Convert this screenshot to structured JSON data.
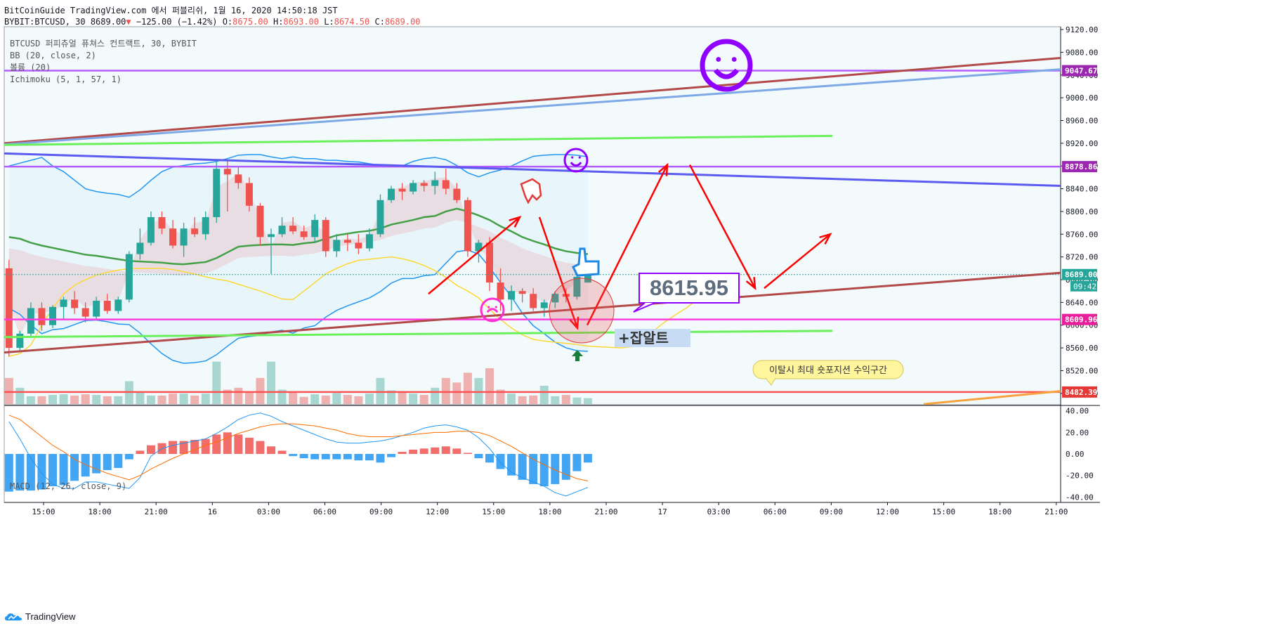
{
  "header": {
    "line1": "BitCoinGuide TradingView.com 에서 퍼블리쉬, 1월 16, 2020 14:50:18 JST",
    "symbol": "BYBIT:BTCUSD, 30",
    "last": "8689.00",
    "down_arrow": "▼",
    "change": "−125.00 (−1.42%)",
    "o_label": "O:",
    "o": "8675.00",
    "h_label": "H:",
    "h": "8693.00",
    "l_label": "L:",
    "l": "8674.50",
    "c_label": "C:",
    "c": "8689.00"
  },
  "legend": {
    "title": "BTCUSD 퍼피츄얼 퓨쳐스 컨트랙트, 30, BYBIT",
    "bb": "BB (20, close, 2)",
    "volume": "볼륨 (20)",
    "ichimoku": "Ichimoku (5, 1, 57, 1)",
    "macd": "MACD (12, 26, close, 9)"
  },
  "brand": "TradingView",
  "colors": {
    "up": "#26a69a",
    "down": "#ef5350",
    "bb_basis": "#43a047",
    "bb_band": "#2196f3",
    "ichimoku": "#fdd835",
    "macd_line": "#2196f3",
    "signal_line": "#ff6d00",
    "annot": "#ff0000",
    "purple": "#8f00ff"
  },
  "chart_data": [
    {
      "type": "candlestick",
      "title": "BTCUSD 퍼피츄얼 퓨쳐스 컨트랙트, 30, BYBIT",
      "ylim": [
        8460,
        9125
      ],
      "y_ticks": [
        8480,
        8520,
        8560,
        8600,
        8640,
        8680,
        8720,
        8760,
        8800,
        8840,
        8880,
        8920,
        8960,
        9000,
        9040,
        9080,
        9120
      ],
      "x_ticks": [
        "15:00",
        "18:00",
        "21:00",
        "16",
        "03:00",
        "06:00",
        "09:00",
        "12:00",
        "15:00",
        "18:00",
        "21:00",
        "17",
        "03:00",
        "06:00",
        "09:00",
        "12:00",
        "15:00",
        "18:00",
        "21:00"
      ],
      "ohlc": [
        [
          8700,
          8715,
          8545,
          8560
        ],
        [
          8560,
          8590,
          8555,
          8585
        ],
        [
          8585,
          8640,
          8580,
          8630
        ],
        [
          8630,
          8640,
          8590,
          8600
        ],
        [
          8600,
          8635,
          8595,
          8632
        ],
        [
          8632,
          8650,
          8610,
          8645
        ],
        [
          8645,
          8660,
          8620,
          8630
        ],
        [
          8630,
          8640,
          8605,
          8615
        ],
        [
          8615,
          8650,
          8610,
          8643
        ],
        [
          8643,
          8655,
          8620,
          8625
        ],
        [
          8625,
          8650,
          8620,
          8645
        ],
        [
          8645,
          8730,
          8640,
          8725
        ],
        [
          8725,
          8770,
          8715,
          8745
        ],
        [
          8745,
          8800,
          8740,
          8790
        ],
        [
          8790,
          8800,
          8760,
          8770
        ],
        [
          8770,
          8785,
          8735,
          8740
        ],
        [
          8740,
          8780,
          8720,
          8770
        ],
        [
          8770,
          8790,
          8755,
          8760
        ],
        [
          8760,
          8800,
          8750,
          8790
        ],
        [
          8790,
          8890,
          8780,
          8875
        ],
        [
          8875,
          8890,
          8800,
          8865
        ],
        [
          8865,
          8880,
          8840,
          8850
        ],
        [
          8850,
          8860,
          8800,
          8810
        ],
        [
          8810,
          8815,
          8740,
          8755
        ],
        [
          8755,
          8770,
          8690,
          8760
        ],
        [
          8760,
          8790,
          8755,
          8775
        ],
        [
          8775,
          8790,
          8760,
          8765
        ],
        [
          8765,
          8775,
          8750,
          8755
        ],
        [
          8755,
          8795,
          8745,
          8785
        ],
        [
          8785,
          8790,
          8720,
          8730
        ],
        [
          8730,
          8760,
          8720,
          8750
        ],
        [
          8750,
          8760,
          8730,
          8745
        ],
        [
          8745,
          8760,
          8725,
          8735
        ],
        [
          8735,
          8770,
          8730,
          8760
        ],
        [
          8760,
          8830,
          8755,
          8820
        ],
        [
          8820,
          8845,
          8815,
          8840
        ],
        [
          8840,
          8850,
          8820,
          8835
        ],
        [
          8835,
          8855,
          8830,
          8850
        ],
        [
          8850,
          8855,
          8835,
          8845
        ],
        [
          8845,
          8870,
          8830,
          8855
        ],
        [
          8855,
          8875,
          8830,
          8840
        ],
        [
          8840,
          8850,
          8815,
          8820
        ],
        [
          8820,
          8825,
          8720,
          8730
        ],
        [
          8730,
          8750,
          8710,
          8745
        ],
        [
          8745,
          8755,
          8660,
          8675
        ],
        [
          8675,
          8700,
          8625,
          8645
        ],
        [
          8645,
          8670,
          8625,
          8660
        ],
        [
          8660,
          8665,
          8640,
          8655
        ],
        [
          8655,
          8665,
          8625,
          8630
        ],
        [
          8630,
          8645,
          8615,
          8640
        ],
        [
          8640,
          8660,
          8630,
          8655
        ],
        [
          8655,
          8665,
          8640,
          8650
        ],
        [
          8650,
          8690,
          8645,
          8685
        ],
        [
          8675,
          8693,
          8674.5,
          8689
        ]
      ],
      "volume": [
        40,
        25,
        12,
        12,
        14,
        15,
        13,
        15,
        14,
        12,
        12,
        35,
        18,
        13,
        13,
        16,
        16,
        13,
        16,
        65,
        22,
        25,
        18,
        40,
        65,
        22,
        18,
        11,
        15,
        13,
        17,
        14,
        12,
        16,
        40,
        21,
        18,
        16,
        14,
        25,
        40,
        33,
        48,
        40,
        55,
        22,
        16,
        12,
        13,
        28,
        12,
        14,
        10,
        9
      ],
      "bb_basis": [
        8755,
        8752,
        8745,
        8740,
        8736,
        8732,
        8728,
        8724,
        8722,
        8719,
        8716,
        8713,
        8712,
        8711,
        8710,
        8708,
        8707,
        8709,
        8711,
        8718,
        8728,
        8738,
        8740,
        8741,
        8742,
        8742,
        8741,
        8744,
        8746,
        8752,
        8758,
        8761,
        8764,
        8766,
        8770,
        8777,
        8781,
        8785,
        8790,
        8792,
        8800,
        8805,
        8800,
        8793,
        8785,
        8774,
        8765,
        8755,
        8748,
        8742,
        8735,
        8730,
        8727,
        8725
      ],
      "bb_upper": [
        8880,
        8885,
        8890,
        8895,
        8880,
        8870,
        8855,
        8840,
        8835,
        8832,
        8830,
        8825,
        8838,
        8855,
        8870,
        8878,
        8881,
        8884,
        8885,
        8888,
        8893,
        8899,
        8900,
        8900,
        8896,
        8893,
        8896,
        8893,
        8893,
        8890,
        8890,
        8888,
        8887,
        8884,
        8881,
        8880,
        8880,
        8888,
        8893,
        8895,
        8891,
        8881,
        8868,
        8861,
        8868,
        8873,
        8880,
        8889,
        8897,
        8899,
        8900,
        8900,
        8899,
        8896
      ],
      "ichimoku_lag": [
        8660,
        8650,
        8640,
        8600,
        8580,
        8560,
        8545,
        8540,
        8545,
        8550,
        8565,
        8600,
        8630,
        8655,
        8670,
        8680,
        8688,
        8693,
        8697,
        8699,
        8700,
        8700,
        8700,
        8698,
        8694,
        8690,
        8685,
        8681,
        8678,
        8672,
        8666,
        8660,
        8653,
        8646,
        8645,
        8660,
        8675,
        8690,
        8700,
        8708,
        8714,
        8716,
        8718,
        8720,
        8717,
        8712,
        8705,
        8696,
        8684,
        8670,
        8660,
        8648,
        8628,
        8610,
        8595,
        8583,
        8575,
        8572,
        8570,
        8568,
        8566,
        8563,
        8562,
        8561,
        8560,
        8562,
        8572,
        8590,
        8605,
        8618,
        8630,
        8645,
        8660
      ],
      "support_levels": [
        9047.67,
        8878.86,
        8609.96,
        8482.39
      ],
      "price_label": "8689.00",
      "countdown": "09:42",
      "level_labels": [
        "9047.67",
        "8878.86",
        "8609.96",
        "8482.39"
      ],
      "annotations": [
        "8615.95",
        "+잡알트",
        "이탈시 최대 숏포지션 수익구간"
      ]
    },
    {
      "type": "macd",
      "title": "MACD (12, 26, close, 9)",
      "ylim": [
        -45,
        45
      ],
      "y_ticks": [
        40,
        20,
        0,
        -20,
        -40
      ],
      "histogram": [
        -35,
        -34,
        -34,
        -33,
        -30,
        -29,
        -25,
        -21,
        -18,
        -15,
        -13,
        -5,
        3,
        8,
        10,
        12,
        12,
        13,
        14,
        18,
        20,
        18,
        15,
        12,
        7,
        3,
        -2,
        -4,
        -5,
        -5,
        -5,
        -5,
        -6,
        -6,
        -8,
        -3,
        2,
        4,
        5,
        6,
        7,
        5,
        1,
        -4,
        -8,
        -14,
        -20,
        -24,
        -28,
        -30,
        -28,
        -24,
        -16,
        -8
      ],
      "macd_line": [
        30,
        14,
        -4,
        -18,
        -28,
        -32,
        -32,
        -26,
        -26,
        -28,
        -30,
        -32,
        -22,
        -2,
        5,
        8,
        10,
        12,
        14,
        19,
        25,
        32,
        36,
        38,
        35,
        30,
        26,
        22,
        18,
        14,
        11,
        10,
        10,
        11,
        12,
        14,
        17,
        20,
        24,
        26,
        27,
        25,
        22,
        15,
        5,
        -8,
        -17,
        -22,
        -26,
        -30,
        -36,
        -39,
        -35,
        -31
      ],
      "signal_line": [
        36,
        32,
        24,
        16,
        8,
        2,
        -5,
        -10,
        -14,
        -18,
        -21,
        -24,
        -20,
        -14,
        -9,
        -4,
        0,
        4,
        8,
        11,
        15,
        19,
        22,
        25,
        27,
        28,
        28,
        27,
        26,
        24,
        22,
        19,
        17,
        16,
        16,
        16,
        17,
        18,
        19,
        20,
        20,
        21,
        21,
        20,
        17,
        12,
        7,
        1,
        -5,
        -10,
        -15,
        -19,
        -23,
        -25
      ]
    }
  ]
}
